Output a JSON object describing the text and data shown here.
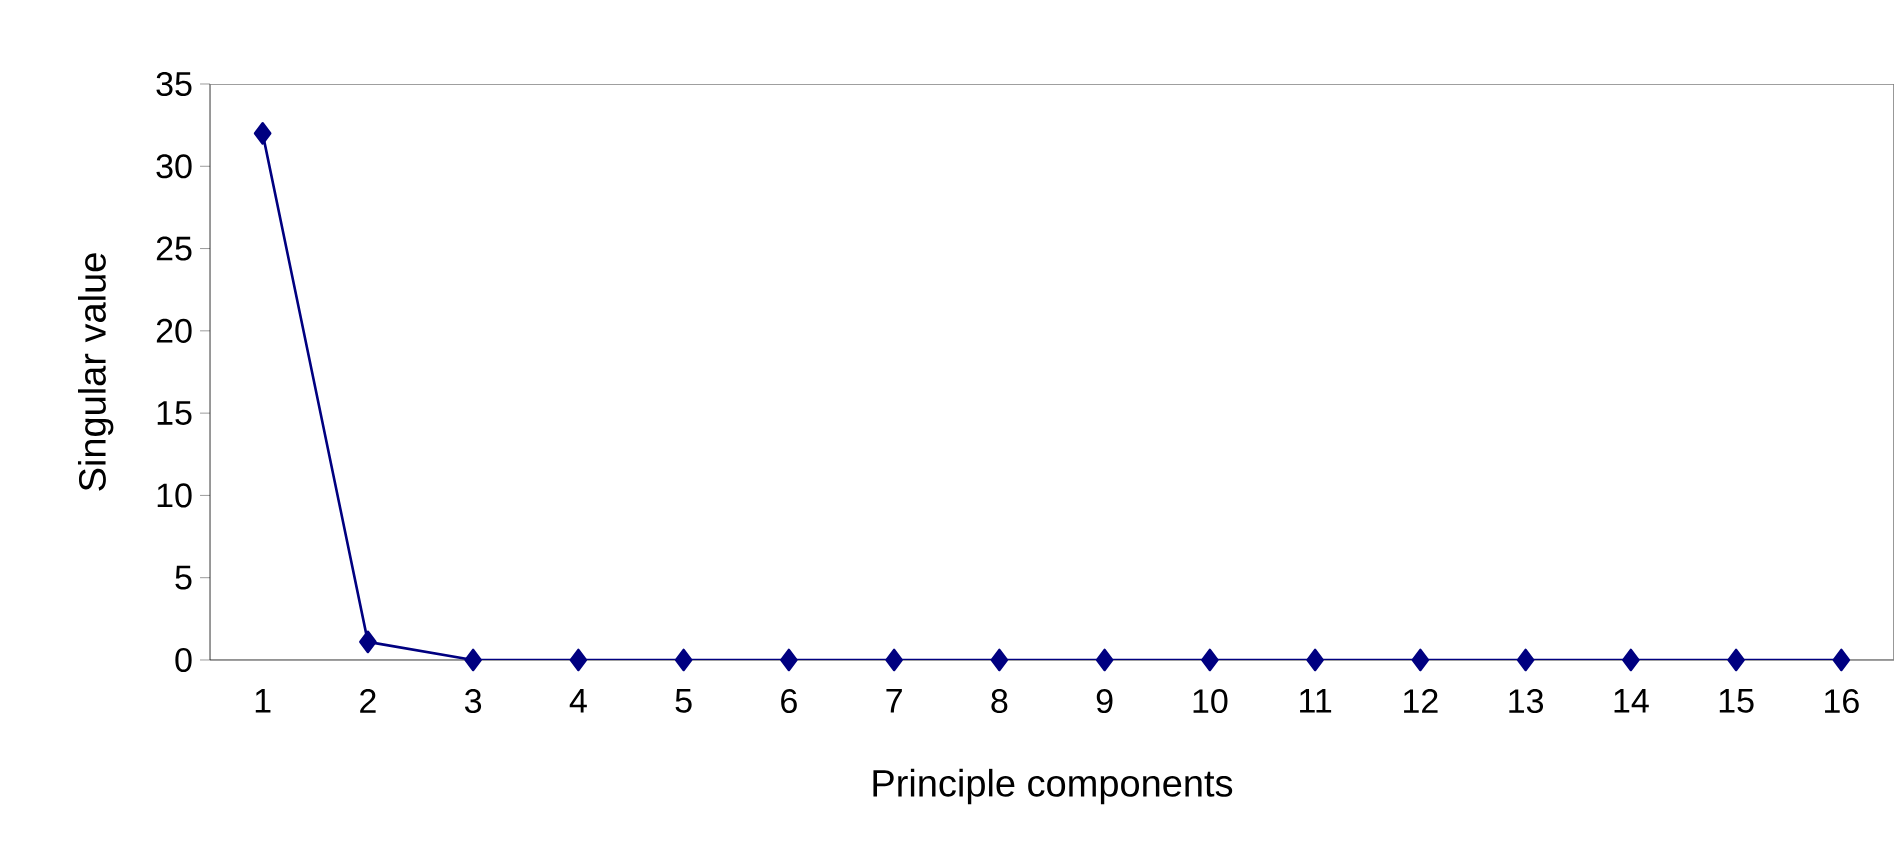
{
  "chart_data": {
    "type": "line",
    "xlabel": "Principle components",
    "ylabel": "Singular value",
    "categories": [
      "1",
      "2",
      "3",
      "4",
      "5",
      "6",
      "7",
      "8",
      "9",
      "10",
      "11",
      "12",
      "13",
      "14",
      "15",
      "16"
    ],
    "series": [
      {
        "color": "#000080",
        "values": [
          32,
          1.1,
          0,
          0,
          0,
          0,
          0,
          0,
          0,
          0,
          0,
          0,
          0,
          0,
          0,
          0
        ]
      }
    ],
    "ylim": [
      0,
      35
    ],
    "yticks": [
      0,
      5,
      10,
      15,
      20,
      25,
      30,
      35
    ],
    "marker": "diamond",
    "line_style": "solid",
    "grid": false
  }
}
